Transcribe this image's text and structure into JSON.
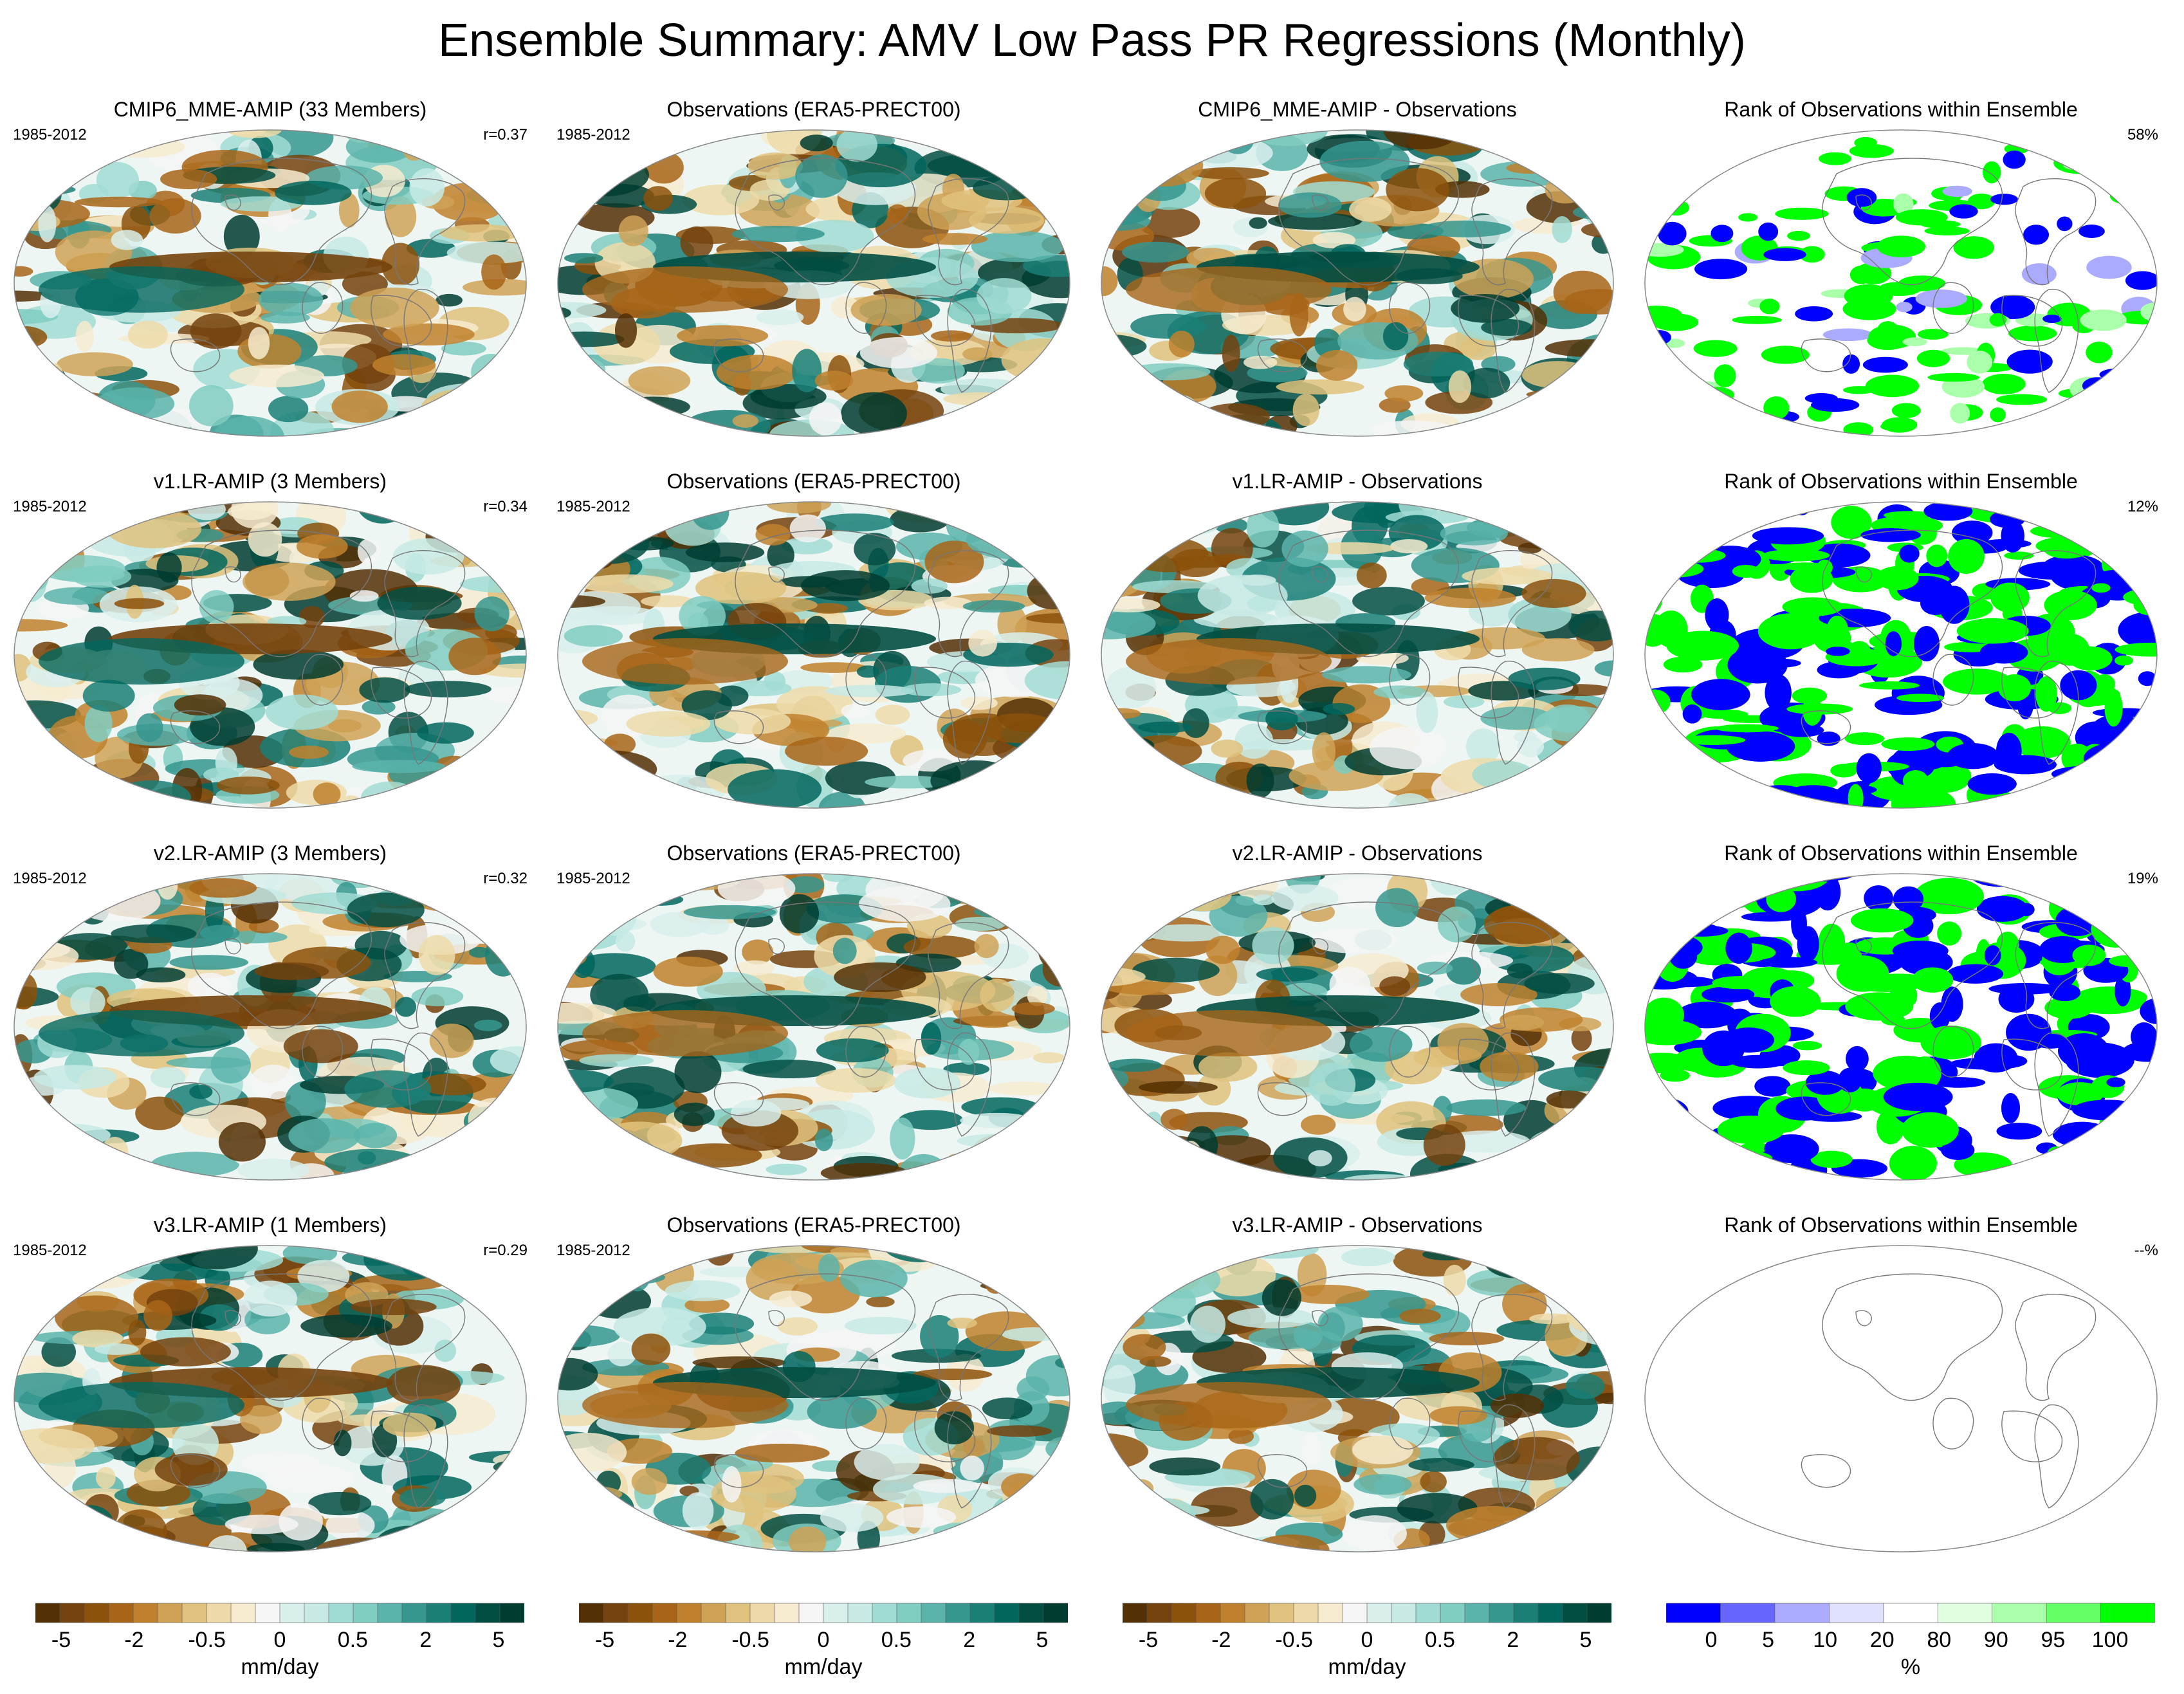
{
  "title": "Ensemble Summary: AMV Low Pass PR Regressions (Monthly)",
  "colors": {
    "div_palette": [
      "#543005",
      "#74420d",
      "#8c510a",
      "#a86518",
      "#bf812d",
      "#cfa256",
      "#dfc27d",
      "#eddaa8",
      "#f6ebcf",
      "#f5f5f5",
      "#d8efec",
      "#c7eae5",
      "#a1dcd4",
      "#80cdc1",
      "#5ab4ac",
      "#35978f",
      "#1a7f77",
      "#01665e",
      "#024e43",
      "#003c30"
    ],
    "rank_palette": [
      "#0000ff",
      "#6666ff",
      "#aaaaff",
      "#e0e0ff",
      "#ffffff",
      "#e0ffe0",
      "#aaffaa",
      "#66ff66",
      "#00ff00"
    ],
    "coast": "#777777",
    "outline": "#888888"
  },
  "rows": [
    {
      "panels": [
        {
          "type": "model",
          "title": "CMIP6_MME-AMIP (33 Members)",
          "left": "1985-2012",
          "right": "r=0.37"
        },
        {
          "type": "obs",
          "title": "Observations (ERA5-PRECT00)",
          "left": "1985-2012",
          "right": ""
        },
        {
          "type": "diff",
          "title": "CMIP6_MME-AMIP - Observations",
          "left": "",
          "right": ""
        },
        {
          "type": "rank",
          "title": "Rank of Observations within Ensemble",
          "left": "",
          "right": "58%",
          "mode": "sparse"
        }
      ]
    },
    {
      "panels": [
        {
          "type": "model",
          "title": "v1.LR-AMIP (3 Members)",
          "left": "1985-2012",
          "right": "r=0.34"
        },
        {
          "type": "obs",
          "title": "Observations (ERA5-PRECT00)",
          "left": "1985-2012",
          "right": ""
        },
        {
          "type": "diff",
          "title": "v1.LR-AMIP - Observations",
          "left": "",
          "right": ""
        },
        {
          "type": "rank",
          "title": "Rank of Observations within Ensemble",
          "left": "",
          "right": "12%",
          "mode": "dense"
        }
      ]
    },
    {
      "panels": [
        {
          "type": "model",
          "title": "v2.LR-AMIP (3 Members)",
          "left": "1985-2012",
          "right": "r=0.32"
        },
        {
          "type": "obs",
          "title": "Observations (ERA5-PRECT00)",
          "left": "1985-2012",
          "right": ""
        },
        {
          "type": "diff",
          "title": "v2.LR-AMIP - Observations",
          "left": "",
          "right": ""
        },
        {
          "type": "rank",
          "title": "Rank of Observations within Ensemble",
          "left": "",
          "right": "19%",
          "mode": "dense"
        }
      ]
    },
    {
      "panels": [
        {
          "type": "model",
          "title": "v3.LR-AMIP (1 Members)",
          "left": "1985-2012",
          "right": "r=0.29"
        },
        {
          "type": "obs",
          "title": "Observations (ERA5-PRECT00)",
          "left": "1985-2012",
          "right": ""
        },
        {
          "type": "diff",
          "title": "v3.LR-AMIP - Observations",
          "left": "",
          "right": ""
        },
        {
          "type": "rank",
          "title": "Rank of Observations within Ensemble",
          "left": "",
          "right": "--%",
          "mode": "empty"
        }
      ]
    }
  ],
  "colorbars": [
    {
      "ticks": [
        "-5",
        "-2",
        "-0.5",
        "0",
        "0.5",
        "2",
        "5"
      ],
      "unit": "mm/day"
    },
    {
      "ticks": [
        "-5",
        "-2",
        "-0.5",
        "0",
        "0.5",
        "2",
        "5"
      ],
      "unit": "mm/day"
    },
    {
      "ticks": [
        "-5",
        "-2",
        "-0.5",
        "0",
        "0.5",
        "2",
        "5"
      ],
      "unit": "mm/day"
    },
    {
      "ticks": [
        "0",
        "5",
        "10",
        "20",
        "80",
        "90",
        "95",
        "100"
      ],
      "unit": "%"
    }
  ]
}
